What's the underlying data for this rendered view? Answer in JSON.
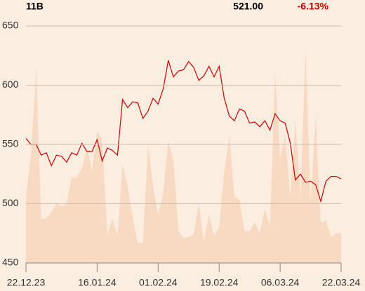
{
  "chart_data": {
    "type": "line",
    "title": "11B",
    "last_price": "521.00",
    "change": "-6.13%",
    "change_color": "#cc0000",
    "categories": [
      "22.12.23",
      null,
      null,
      null,
      null,
      null,
      null,
      null,
      null,
      null,
      null,
      null,
      null,
      null,
      "16.01.24",
      null,
      null,
      null,
      null,
      null,
      null,
      null,
      null,
      null,
      null,
      null,
      "01.02.24",
      null,
      null,
      null,
      null,
      null,
      null,
      null,
      null,
      null,
      null,
      null,
      "19.02.24",
      null,
      null,
      null,
      null,
      null,
      null,
      null,
      null,
      null,
      null,
      null,
      "06.03.24",
      null,
      null,
      null,
      null,
      null,
      null,
      null,
      null,
      null,
      null,
      null,
      "22.03.24"
    ],
    "series": [
      {
        "type": "area",
        "color": "#f8d9c2",
        "values": [
          506,
          542,
          614,
          487,
          488,
          493,
          500,
          498,
          500,
          522,
          522,
          530,
          546,
          528,
          561,
          553,
          474,
          487,
          474,
          533,
          515,
          488,
          467,
          467,
          549,
          515,
          491,
          509,
          553,
          536,
          477,
          471,
          472,
          474,
          500,
          468,
          491,
          473,
          480,
          527,
          557,
          506,
          503,
          477,
          477,
          484,
          475,
          496,
          481,
          610,
          539,
          557,
          506,
          571,
          506,
          630,
          500,
          574,
          484,
          486,
          472,
          475,
          475
        ]
      },
      {
        "type": "line",
        "color": "#cc0000",
        "values": [
          555,
          550,
          550,
          541,
          543,
          532,
          541,
          540,
          535,
          543,
          541,
          551,
          544,
          544,
          554,
          536,
          547,
          545,
          541,
          588,
          581,
          586,
          585,
          572,
          578,
          589,
          584,
          597,
          621,
          607,
          612,
          613,
          620,
          615,
          604,
          608,
          616,
          607,
          616,
          589,
          574,
          570,
          580,
          578,
          568,
          569,
          565,
          570,
          562,
          576,
          570,
          568,
          551,
          520,
          525,
          518,
          519,
          516,
          502,
          519,
          523,
          523,
          521
        ]
      }
    ],
    "ylim": [
      450,
      650
    ],
    "yticks": [
      450,
      500,
      550,
      600,
      650
    ],
    "grid": true
  }
}
